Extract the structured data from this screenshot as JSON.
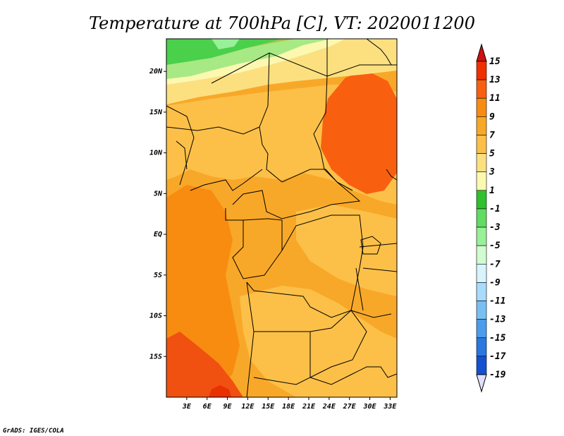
{
  "title": "Temperature at 700hPa [C], VT: 2020011200",
  "credit": "GrADS: IGES/COLA",
  "map": {
    "lon_range": [
      0,
      34
    ],
    "lat_range": [
      -20,
      24
    ],
    "y_ticks": [
      "20N",
      "15N",
      "10N",
      "5N",
      "EQ",
      "5S",
      "10S",
      "15S"
    ],
    "y_tick_values": [
      20,
      15,
      10,
      5,
      0,
      -5,
      -10,
      -15
    ],
    "x_ticks": [
      "3E",
      "6E",
      "9E",
      "12E",
      "15E",
      "18E",
      "21E",
      "24E",
      "27E",
      "30E",
      "33E"
    ],
    "x_tick_values": [
      3,
      6,
      9,
      12,
      15,
      18,
      21,
      24,
      27,
      30,
      33
    ]
  },
  "colorbar": {
    "labels": [
      "15",
      "13",
      "11",
      "9",
      "7",
      "5",
      "3",
      "1",
      "-1",
      "-3",
      "-5",
      "-7",
      "-9",
      "-11",
      "-13",
      "-15",
      "-17",
      "-19"
    ],
    "colors_top_to_bottom": [
      "#f03000",
      "#f86010",
      "#f88c10",
      "#f8a828",
      "#fcc048",
      "#fce080",
      "#fcf8b0",
      "#30c030",
      "#60dc60",
      "#98f098",
      "#d0fcd0",
      "#d8f4fc",
      "#a8dcfc",
      "#78c0f4",
      "#4c9cec",
      "#2878e0",
      "#1450d0",
      "#0a28b0",
      "#00107a",
      "#e8e8f8"
    ],
    "arrow_top_color": "#d01010",
    "arrow_bottom_color": "#e0e0fc"
  }
}
